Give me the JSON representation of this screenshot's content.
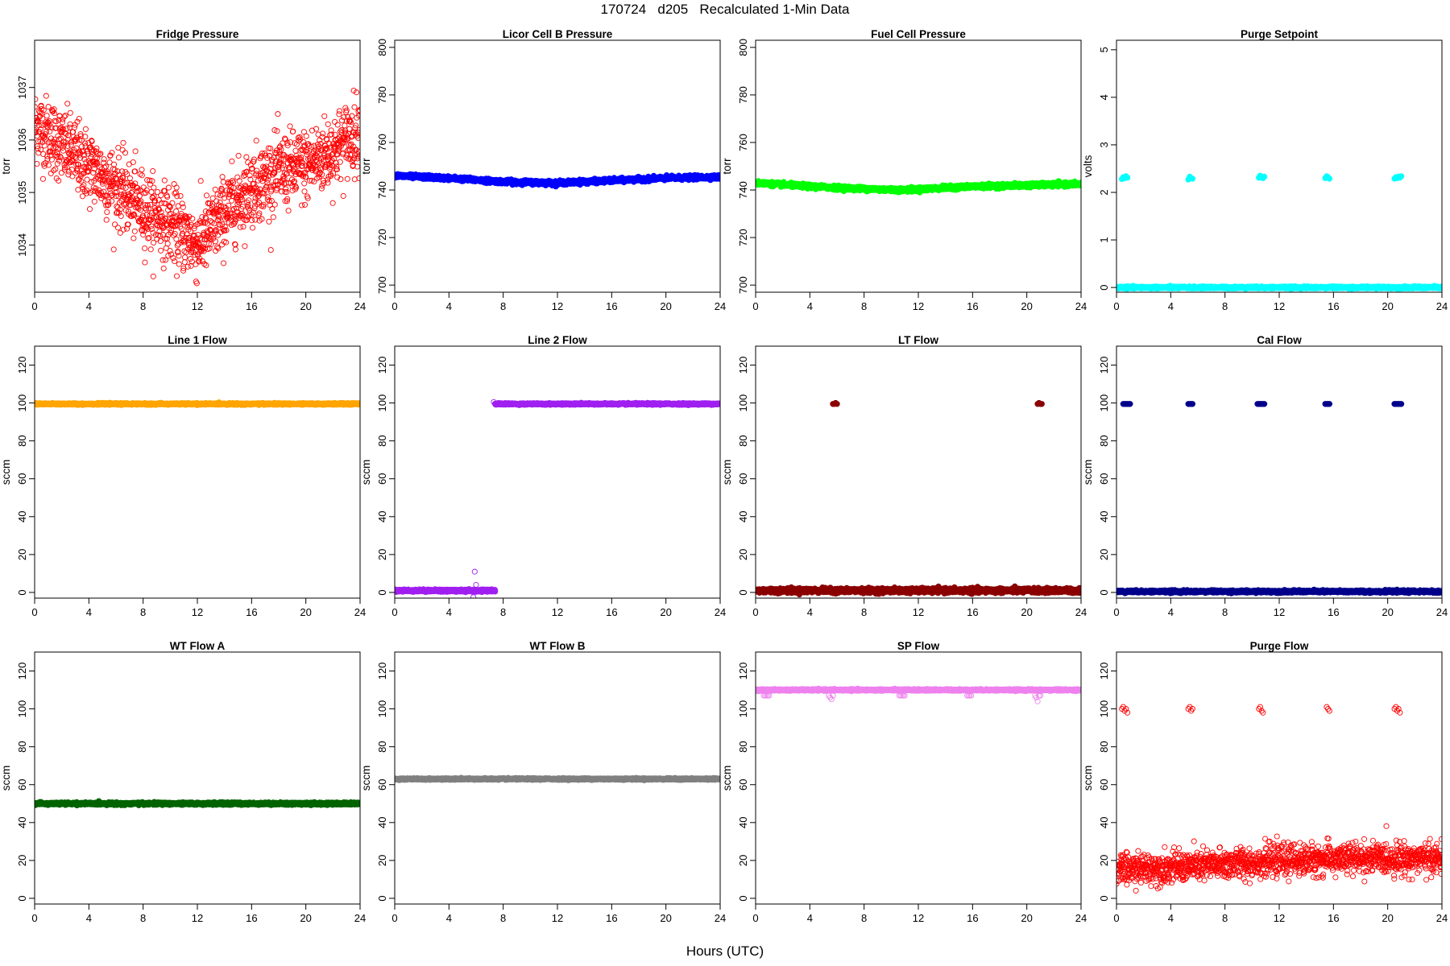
{
  "figure": {
    "title": "170724   d205   Recalculated 1-Min Data",
    "xlabel": "Hours (UTC)"
  },
  "chart_data": [
    {
      "type": "scatter",
      "title": "Fridge Pressure",
      "ylabel": "torr",
      "color": "#ff0000",
      "hollow": true,
      "xlim": [
        0,
        24
      ],
      "ylim": [
        1033.1,
        1037.9
      ],
      "xticks": [
        0,
        4,
        8,
        12,
        16,
        20,
        24
      ],
      "yticks": [
        1034,
        1035,
        1036,
        1037
      ],
      "series": [
        {
          "trend": [
            [
              0,
              1036.3
            ],
            [
              2,
              1035.9
            ],
            [
              4,
              1035.5
            ],
            [
              6,
              1035.1
            ],
            [
              8,
              1034.7
            ],
            [
              10,
              1034.4
            ],
            [
              12,
              1034.0
            ],
            [
              14,
              1034.6
            ],
            [
              16,
              1035.1
            ],
            [
              18,
              1035.4
            ],
            [
              20,
              1035.5
            ],
            [
              22,
              1035.8
            ],
            [
              24,
              1036.2
            ]
          ],
          "noise": 0.35
        }
      ]
    },
    {
      "type": "scatter",
      "title": "Licor Cell B Pressure",
      "ylabel": "torr",
      "color": "#0000ff",
      "hollow": false,
      "xlim": [
        0,
        24
      ],
      "ylim": [
        697,
        803
      ],
      "xticks": [
        0,
        4,
        8,
        12,
        16,
        20,
        24
      ],
      "yticks": [
        700,
        720,
        740,
        760,
        780,
        800
      ],
      "series": [
        {
          "trend": [
            [
              0,
              746
            ],
            [
              4,
              745
            ],
            [
              8,
              743.5
            ],
            [
              12,
              743
            ],
            [
              16,
              744
            ],
            [
              20,
              745
            ],
            [
              24,
              745.5
            ]
          ],
          "noise": 0.4
        }
      ]
    },
    {
      "type": "scatter",
      "title": "Fuel Cell Pressure",
      "ylabel": "torr",
      "color": "#00ff00",
      "hollow": false,
      "xlim": [
        0,
        24
      ],
      "ylim": [
        697,
        803
      ],
      "xticks": [
        0,
        4,
        8,
        12,
        16,
        20,
        24
      ],
      "yticks": [
        700,
        720,
        740,
        760,
        780,
        800
      ],
      "series": [
        {
          "trend": [
            [
              0,
              743
            ],
            [
              4,
              741.5
            ],
            [
              8,
              740.5
            ],
            [
              11,
              740
            ],
            [
              16,
              741.5
            ],
            [
              20,
              742
            ],
            [
              24,
              742.5
            ]
          ],
          "noise": 0.4
        }
      ]
    },
    {
      "type": "scatter",
      "title": "Purge Setpoint",
      "ylabel": "volts",
      "color": "#00ffff",
      "hollow": false,
      "xlim": [
        0,
        24
      ],
      "ylim": [
        -0.1,
        5.2
      ],
      "xticks": [
        0,
        4,
        8,
        12,
        16,
        20,
        24
      ],
      "yticks": [
        0,
        1,
        2,
        3,
        4,
        5
      ],
      "series": [
        {
          "trend": [
            [
              0,
              0
            ],
            [
              24,
              0
            ]
          ],
          "noise": 0.01
        },
        {
          "x": [
            0.4,
            0.5,
            0.6,
            0.7,
            0.8,
            5.3,
            5.4,
            5.5,
            5.6,
            10.5,
            10.6,
            10.7,
            10.8,
            10.9,
            15.4,
            15.5,
            15.6,
            15.7,
            20.5,
            20.6,
            20.7,
            20.8,
            20.9,
            21.0
          ],
          "y": [
            2.28,
            2.32,
            2.3,
            2.34,
            2.31,
            2.27,
            2.33,
            2.3,
            2.29,
            2.31,
            2.35,
            2.32,
            2.3,
            2.33,
            2.3,
            2.34,
            2.32,
            2.29,
            2.29,
            2.32,
            2.3,
            2.33,
            2.31,
            2.34
          ]
        }
      ]
    },
    {
      "type": "scatter",
      "title": "Line 1 Flow",
      "ylabel": "sccm",
      "color": "#ffa500",
      "hollow": false,
      "xlim": [
        0,
        24
      ],
      "ylim": [
        -3,
        130
      ],
      "xticks": [
        0,
        4,
        8,
        12,
        16,
        20,
        24
      ],
      "yticks": [
        0,
        20,
        40,
        60,
        80,
        100,
        120
      ],
      "series": [
        {
          "trend": [
            [
              0,
              99.5
            ],
            [
              24,
              99.5
            ]
          ],
          "noise": 0.2
        }
      ]
    },
    {
      "type": "scatter",
      "title": "Line 2 Flow",
      "ylabel": "sccm",
      "color": "#a020f0",
      "hollow": false,
      "xlim": [
        0,
        24
      ],
      "ylim": [
        -3,
        130
      ],
      "xticks": [
        0,
        4,
        8,
        12,
        16,
        20,
        24
      ],
      "yticks": [
        0,
        20,
        40,
        60,
        80,
        100,
        120
      ],
      "series": [
        {
          "trend": [
            [
              0,
              1
            ],
            [
              7.4,
              1
            ]
          ],
          "noise": 0.3
        },
        {
          "trend": [
            [
              7.4,
              99.5
            ],
            [
              24,
              99.5
            ]
          ],
          "noise": 0.2
        },
        {
          "x": [
            5.8,
            5.9,
            6.0,
            7.3
          ],
          "y": [
            -2.5,
            11,
            4,
            100.5
          ],
          "hollow": true
        }
      ]
    },
    {
      "type": "scatter",
      "title": "LT Flow",
      "ylabel": "sccm",
      "color": "#8b0000",
      "hollow": false,
      "xlim": [
        0,
        24
      ],
      "ylim": [
        -3,
        130
      ],
      "xticks": [
        0,
        4,
        8,
        12,
        16,
        20,
        24
      ],
      "yticks": [
        0,
        20,
        40,
        60,
        80,
        100,
        120
      ],
      "series": [
        {
          "trend": [
            [
              0,
              1
            ],
            [
              24,
              1
            ]
          ],
          "noise": 0.6
        },
        {
          "x": [
            5.7,
            5.8,
            5.9,
            6.0,
            20.8,
            20.9,
            21.0,
            21.1
          ],
          "y": [
            99.5,
            99.5,
            100,
            99.5,
            99.5,
            100,
            99.5,
            99.5
          ]
        }
      ]
    },
    {
      "type": "scatter",
      "title": "Cal Flow",
      "ylabel": "sccm",
      "color": "#00008b",
      "hollow": false,
      "xlim": [
        0,
        24
      ],
      "ylim": [
        -3,
        130
      ],
      "xticks": [
        0,
        4,
        8,
        12,
        16,
        20,
        24
      ],
      "yticks": [
        0,
        20,
        40,
        60,
        80,
        100,
        120
      ],
      "series": [
        {
          "trend": [
            [
              0,
              0.5
            ],
            [
              24,
              0.5
            ]
          ],
          "noise": 0.3
        },
        {
          "x": [
            0.5,
            0.6,
            0.7,
            0.8,
            0.9,
            1.0,
            5.3,
            5.4,
            5.5,
            5.6,
            10.4,
            10.5,
            10.6,
            10.7,
            10.8,
            10.9,
            15.4,
            15.5,
            15.6,
            15.7,
            20.5,
            20.6,
            20.7,
            20.8,
            20.9,
            21.0
          ],
          "y": [
            99.5,
            99.5,
            99.5,
            99.5,
            99.5,
            99.5,
            99.5,
            99.5,
            99.5,
            99.5,
            99.5,
            99.5,
            99.5,
            99.5,
            99.5,
            99.5,
            99.5,
            99.5,
            99.5,
            99.5,
            99.5,
            99.5,
            99.5,
            99.5,
            99.5,
            99.5
          ]
        }
      ]
    },
    {
      "type": "scatter",
      "title": "WT Flow A",
      "ylabel": "sccm",
      "color": "#006400",
      "hollow": false,
      "xlim": [
        0,
        24
      ],
      "ylim": [
        -3,
        130
      ],
      "xticks": [
        0,
        4,
        8,
        12,
        16,
        20,
        24
      ],
      "yticks": [
        0,
        20,
        40,
        60,
        80,
        100,
        120
      ],
      "series": [
        {
          "trend": [
            [
              0,
              50
            ],
            [
              24,
              50
            ]
          ],
          "noise": 0.3
        }
      ]
    },
    {
      "type": "scatter",
      "title": "WT Flow B",
      "ylabel": "sccm",
      "color": "#808080",
      "hollow": false,
      "xlim": [
        0,
        24
      ],
      "ylim": [
        -3,
        130
      ],
      "xticks": [
        0,
        4,
        8,
        12,
        16,
        20,
        24
      ],
      "yticks": [
        0,
        20,
        40,
        60,
        80,
        100,
        120
      ],
      "series": [
        {
          "trend": [
            [
              0,
              63
            ],
            [
              24,
              63
            ]
          ],
          "noise": 0.2
        }
      ]
    },
    {
      "type": "scatter",
      "title": "SP Flow",
      "ylabel": "sccm",
      "color": "#ee82ee",
      "hollow": false,
      "xlim": [
        0,
        24
      ],
      "ylim": [
        -3,
        130
      ],
      "xticks": [
        0,
        4,
        8,
        12,
        16,
        20,
        24
      ],
      "yticks": [
        0,
        20,
        40,
        60,
        80,
        100,
        120
      ],
      "series": [
        {
          "trend": [
            [
              0,
              110
            ],
            [
              24,
              110
            ]
          ],
          "noise": 0.2
        },
        {
          "x": [
            0.6,
            0.7,
            0.8,
            0.9,
            1.0,
            5.4,
            5.5,
            5.6,
            5.7,
            10.6,
            10.7,
            10.8,
            10.9,
            11.0,
            15.6,
            15.7,
            15.8,
            15.9,
            20.6,
            20.7,
            20.8,
            20.9,
            21.0
          ],
          "y": [
            107,
            107,
            107,
            107,
            107,
            107,
            106,
            105,
            107,
            107,
            107,
            107,
            107,
            107,
            107,
            107,
            107,
            107,
            107,
            106,
            104,
            107,
            107
          ],
          "hollow": true
        }
      ]
    },
    {
      "type": "scatter",
      "title": "Purge Flow",
      "ylabel": "sccm",
      "color": "#ff0000",
      "hollow": true,
      "xlim": [
        0,
        24
      ],
      "ylim": [
        -3,
        130
      ],
      "xticks": [
        0,
        4,
        8,
        12,
        16,
        20,
        24
      ],
      "yticks": [
        0,
        20,
        40,
        60,
        80,
        100,
        120
      ],
      "series": [
        {
          "trend": [
            [
              0,
              15
            ],
            [
              6,
              17
            ],
            [
              12,
              20
            ],
            [
              18,
              21
            ],
            [
              24,
              21
            ]
          ],
          "noise": 4
        },
        {
          "x": [
            0.4,
            0.5,
            0.6,
            0.7,
            0.8,
            5.3,
            5.4,
            5.5,
            5.6,
            10.5,
            10.6,
            10.7,
            10.8,
            15.5,
            15.6,
            15.7,
            20.5,
            20.6,
            20.7,
            20.8,
            20.9
          ],
          "y": [
            100,
            101,
            99,
            100,
            98,
            100,
            101,
            99,
            100,
            100,
            101,
            99,
            98,
            101,
            100,
            99,
            100,
            101,
            99,
            100,
            98
          ]
        }
      ]
    }
  ]
}
